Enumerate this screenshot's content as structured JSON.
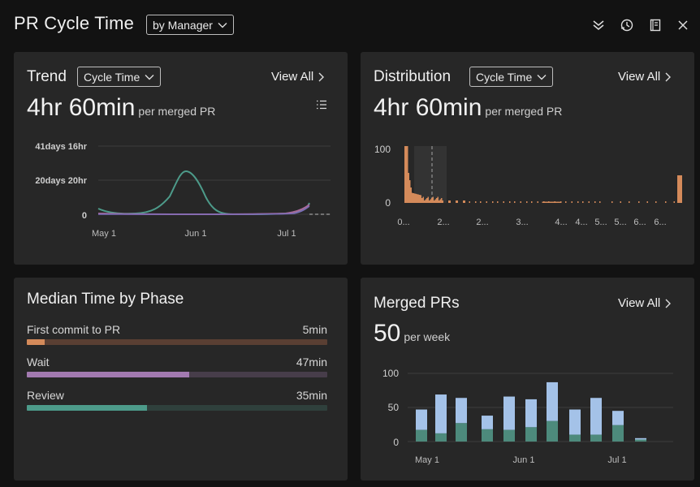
{
  "header": {
    "title": "PR Cycle Time",
    "group_by": "by Manager",
    "icons": [
      "collapse-icon",
      "refresh-icon",
      "notebook-icon",
      "close-icon"
    ]
  },
  "trend": {
    "title": "Trend",
    "metric": "Cycle Time",
    "view_all": "View All",
    "value": "4hr 60min",
    "unit": "per merged PR",
    "y_ticks": [
      "41days 16hr",
      "20days 20hr",
      "0"
    ],
    "x_ticks": [
      "May 1",
      "Jun 1",
      "Jul 1"
    ],
    "colors": {
      "green": "#4d9b8a",
      "pink": "#a86a9a",
      "purple": "#7a6bb8"
    }
  },
  "distribution": {
    "title": "Distribution",
    "metric": "Cycle Time",
    "view_all": "View All",
    "value": "4hr 60min",
    "unit": "per merged PR",
    "y_ticks": [
      "100",
      "0"
    ],
    "x_ticks": [
      "0...",
      "2...",
      "2...",
      "3...",
      "4...",
      "4...",
      "5...",
      "5...",
      "6...",
      "6..."
    ],
    "color": "#d48a5a"
  },
  "phases": {
    "title": "Median Time by Phase",
    "items": [
      {
        "label": "First commit to PR",
        "value": "5min",
        "fill": 0.06,
        "color": "#d48a5a",
        "track": "#5a3f33"
      },
      {
        "label": "Wait",
        "value": "47min",
        "fill": 0.54,
        "color": "#a27ab0",
        "track": "#473d4a"
      },
      {
        "label": "Review",
        "value": "35min",
        "fill": 0.4,
        "color": "#4d9b8a",
        "track": "#2f403c"
      }
    ]
  },
  "merged": {
    "title": "Merged PRs",
    "view_all": "View All",
    "value": "50",
    "unit": "per week",
    "chart_data": {
      "type": "bar",
      "y_ticks": [
        "100",
        "50",
        "0"
      ],
      "ylim": [
        0,
        100
      ],
      "x_ticks": [
        "May 1",
        "Jun 1",
        "Jul 1"
      ],
      "series": [
        {
          "values": [
            17,
            12,
            27,
            18,
            17,
            21,
            30,
            10,
            10,
            24,
            3
          ]
        },
        {
          "values": [
            30,
            57,
            37,
            20,
            49,
            41,
            57,
            37,
            54,
            21,
            2
          ]
        }
      ],
      "colors": [
        "#4d8a7c",
        "#a4c2e8"
      ]
    }
  }
}
